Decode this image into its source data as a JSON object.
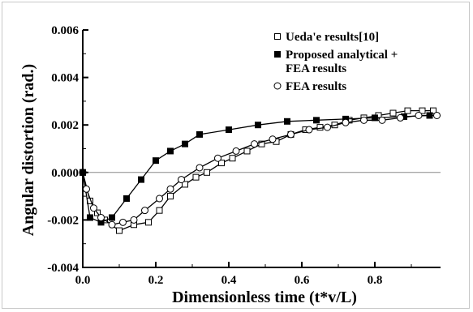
{
  "chart_data": {
    "type": "line",
    "title": "",
    "xlabel": "Dimensionless time (t*v/L)",
    "ylabel": "Angular distortion (rad.)",
    "xlim": [
      0.0,
      0.98
    ],
    "ylim": [
      -0.004,
      0.006
    ],
    "x_ticks": [
      0.0,
      0.2,
      0.4,
      0.6,
      0.8
    ],
    "x_tick_labels": [
      "0.0",
      "0.2",
      "0.4",
      "0.6",
      "0.8"
    ],
    "y_ticks": [
      -0.004,
      -0.002,
      0.0,
      0.002,
      0.004,
      0.006
    ],
    "y_tick_labels": [
      "-0.004",
      "-0.002",
      "0.000",
      "0.002",
      "0.004",
      "0.006"
    ],
    "reference_line": 0.0,
    "grid": false,
    "legend_position": "top-right",
    "series": [
      {
        "name": "Ueda'e results[10]",
        "marker": "open-square",
        "x": [
          0.0,
          0.02,
          0.04,
          0.06,
          0.1,
          0.14,
          0.18,
          0.21,
          0.24,
          0.28,
          0.31,
          0.34,
          0.38,
          0.41,
          0.45,
          0.49,
          0.53,
          0.57,
          0.61,
          0.65,
          0.69,
          0.73,
          0.77,
          0.81,
          0.85,
          0.89,
          0.93,
          0.96
        ],
        "y": [
          0.0,
          -0.0012,
          -0.0017,
          -0.002,
          -0.00245,
          -0.0022,
          -0.0021,
          -0.0016,
          -0.001,
          -0.0005,
          -0.0002,
          0.0,
          0.0004,
          0.0006,
          0.0009,
          0.0012,
          0.0013,
          0.0016,
          0.0018,
          0.0019,
          0.002,
          0.0022,
          0.0023,
          0.0024,
          0.0025,
          0.0026,
          0.0026,
          0.0026
        ]
      },
      {
        "name": "Proposed analytical + FEA results",
        "marker": "filled-square",
        "x": [
          0.0,
          0.02,
          0.05,
          0.08,
          0.12,
          0.16,
          0.2,
          0.24,
          0.28,
          0.32,
          0.4,
          0.48,
          0.56,
          0.64,
          0.72,
          0.8,
          0.88,
          0.95
        ],
        "y": [
          0.0,
          -0.0019,
          -0.0021,
          -0.0019,
          -0.0011,
          -0.0003,
          0.0005,
          0.0009,
          0.0012,
          0.0016,
          0.0018,
          0.002,
          0.00215,
          0.0022,
          0.00225,
          0.0023,
          0.00235,
          0.0024
        ]
      },
      {
        "name": "FEA results",
        "marker": "open-circle",
        "x": [
          0.0,
          0.01,
          0.03,
          0.05,
          0.08,
          0.11,
          0.14,
          0.17,
          0.21,
          0.24,
          0.27,
          0.32,
          0.37,
          0.42,
          0.47,
          0.52,
          0.57,
          0.62,
          0.67,
          0.72,
          0.77,
          0.82,
          0.87,
          0.92,
          0.97
        ],
        "y": [
          0.0,
          -0.0007,
          -0.0015,
          -0.0019,
          -0.0022,
          -0.0021,
          -0.002,
          -0.0016,
          -0.0011,
          -0.0007,
          -0.0003,
          0.0002,
          0.0006,
          0.0009,
          0.0012,
          0.0014,
          0.0016,
          0.0018,
          0.0019,
          0.0021,
          0.0022,
          0.0022,
          0.0023,
          0.0024,
          0.0024
        ]
      }
    ]
  },
  "legend": {
    "items": [
      {
        "marker": "open-square",
        "lines": [
          "Ueda'e results[10]"
        ]
      },
      {
        "marker": "filled-square",
        "lines": [
          "Proposed analytical +",
          "FEA results"
        ]
      },
      {
        "marker": "open-circle",
        "lines": [
          "FEA results"
        ]
      }
    ]
  },
  "colors": {
    "axis": "#000000",
    "reference_line": "#888888",
    "frame": "#c8c8c8"
  }
}
